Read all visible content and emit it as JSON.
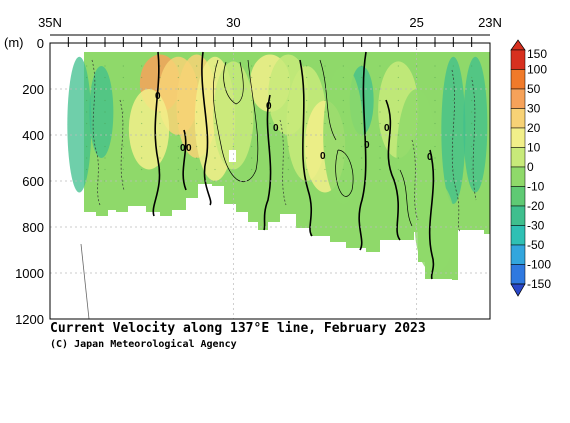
{
  "chart_data": {
    "type": "heatmap",
    "title": "Current Velocity along 137°E line, February 2023",
    "credit": "(C) Japan Meteorological Agency",
    "x_axis": {
      "quantity": "latitude",
      "range": [
        35,
        23
      ],
      "ticks": [
        {
          "value": 35,
          "label": "35N"
        },
        {
          "value": 30,
          "label": "30"
        },
        {
          "value": 25,
          "label": "25"
        },
        {
          "value": 23,
          "label": "23N"
        }
      ]
    },
    "y_axis": {
      "unit_label": "(m)",
      "range": [
        0,
        1200
      ],
      "inverted": true,
      "ticks": [
        0,
        200,
        400,
        600,
        800,
        1000,
        1200
      ]
    },
    "grid": true,
    "colorbar": {
      "position": "right",
      "levels": [
        "150",
        "100",
        "50",
        "30",
        "20",
        "10",
        "0",
        "-10",
        "-20",
        "-30",
        "-50",
        "-100",
        "-150"
      ],
      "colors": [
        "#d7301f",
        "#f07a2a",
        "#f6a25a",
        "#f7d276",
        "#f2ef8a",
        "#c8ea7a",
        "#8fd96a",
        "#5fca74",
        "#3fbf8e",
        "#2fc0b4",
        "#33a6dd",
        "#2f79e0",
        "#2947c8"
      ]
    },
    "contour_labels": [
      "0",
      "0",
      "0",
      "0",
      "0",
      "0",
      "0",
      "0",
      "0"
    ],
    "cells": [
      {
        "lat": 32.0,
        "z0": 50,
        "z1": 300,
        "v": 70
      },
      {
        "lat": 31.5,
        "z0": 60,
        "z1": 400,
        "v": 45
      },
      {
        "lat": 31.0,
        "z0": 50,
        "z1": 500,
        "v": 30
      },
      {
        "lat": 30.5,
        "z0": 60,
        "z1": 600,
        "v": 25
      },
      {
        "lat": 32.3,
        "z0": 200,
        "z1": 550,
        "v": 25
      },
      {
        "lat": 30.0,
        "z0": 80,
        "z1": 550,
        "v": 15
      },
      {
        "lat": 29.0,
        "z0": 50,
        "z1": 300,
        "v": 20
      },
      {
        "lat": 28.5,
        "z0": 50,
        "z1": 400,
        "v": 15
      },
      {
        "lat": 28.0,
        "z0": 100,
        "z1": 600,
        "v": 12
      },
      {
        "lat": 27.5,
        "z0": 250,
        "z1": 650,
        "v": 20
      },
      {
        "lat": 27.0,
        "z0": 100,
        "z1": 700,
        "v": 8
      },
      {
        "lat": 25.5,
        "z0": 80,
        "z1": 500,
        "v": 10
      },
      {
        "lat": 25.0,
        "z0": 200,
        "z1": 800,
        "v": 6
      },
      {
        "lat": 24.5,
        "z0": 600,
        "z1": 1000,
        "v": 8
      }
    ]
  }
}
